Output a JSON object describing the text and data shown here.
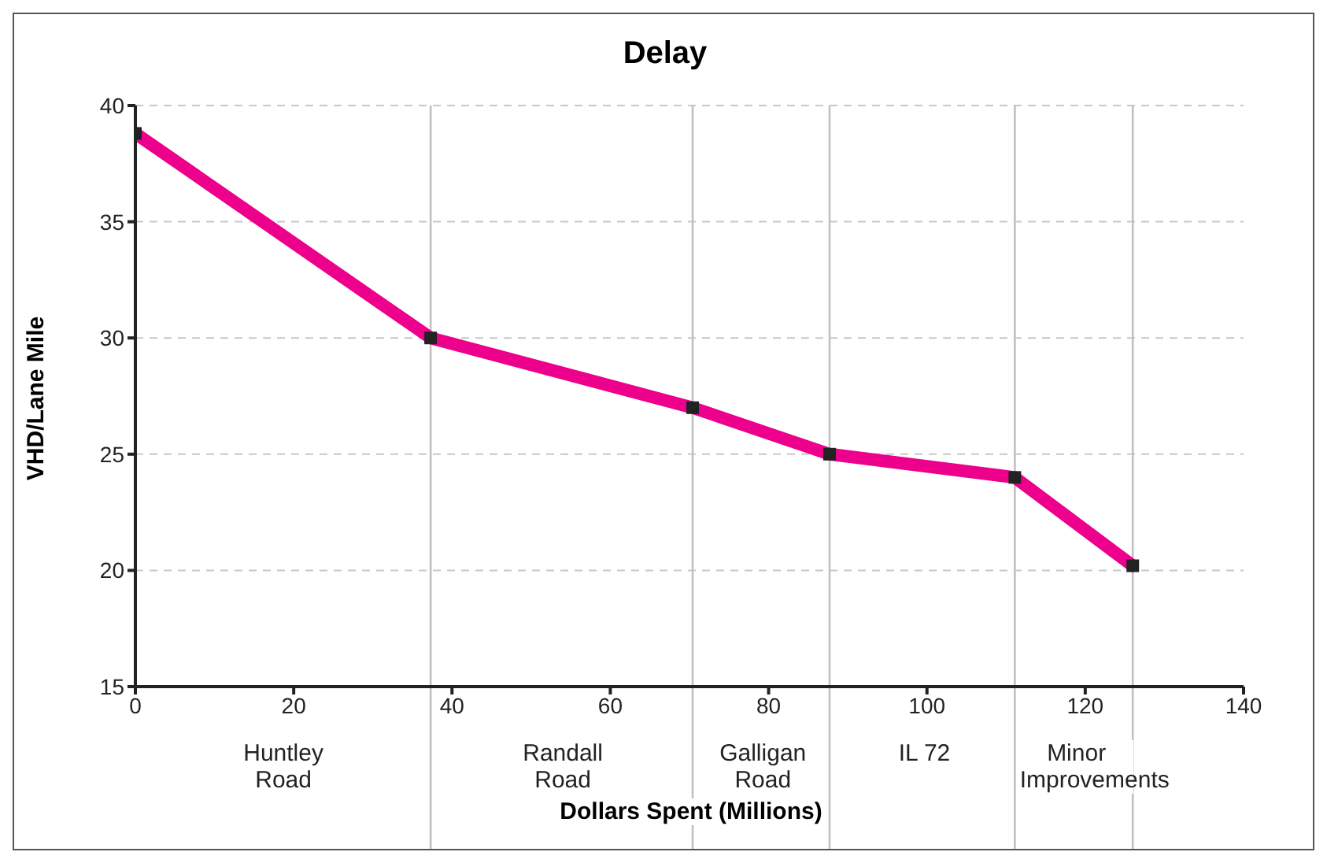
{
  "chart_data": {
    "type": "line",
    "title": "Delay",
    "xlabel": "Dollars Spent (Millions)",
    "ylabel": "VHD/Lane Mile",
    "x": [
      0,
      37.3,
      70.4,
      87.7,
      111.1,
      126
    ],
    "series": [
      {
        "color": "#ec008c",
        "values": [
          38.8,
          30,
          27,
          25,
          24,
          20.2
        ]
      }
    ],
    "xlim": [
      0,
      140
    ],
    "xticks": [
      0,
      20,
      40,
      60,
      80,
      100,
      120,
      140
    ],
    "ylim": [
      15,
      40
    ],
    "yticks": [
      15,
      20,
      25,
      30,
      35,
      40
    ],
    "grid": "y",
    "marker": "square",
    "line_style": "solid",
    "legend": false,
    "ref_lines": [
      {
        "axis": "x",
        "value": 37.3,
        "color": "#c0c0c0"
      },
      {
        "axis": "x",
        "value": 70.4,
        "color": "#c0c0c0"
      },
      {
        "axis": "x",
        "value": 87.7,
        "color": "#c0c0c0"
      },
      {
        "axis": "x",
        "value": 111.1,
        "color": "#c0c0c0"
      },
      {
        "axis": "x",
        "value": 126,
        "color": "#c0c0c0"
      }
    ],
    "annotations": [
      "Huntley Road",
      "Randall Road",
      "Galligan Road",
      "IL 72",
      "Minor Improvements"
    ]
  }
}
